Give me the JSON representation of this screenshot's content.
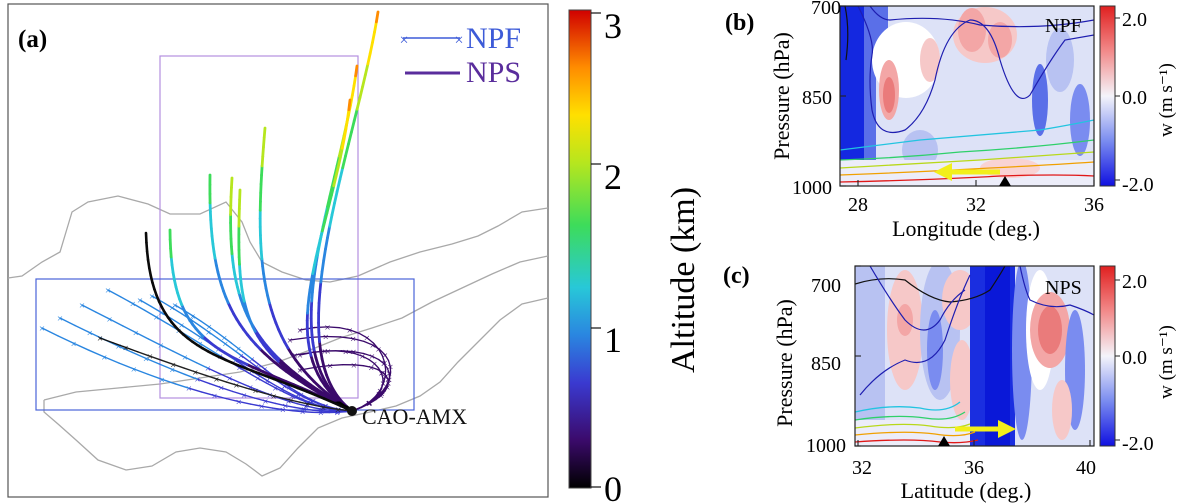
{
  "panel_a": {
    "label": "(a)",
    "legend": [
      {
        "name": "NPF",
        "color": "#3d5bd8",
        "marker": "x"
      },
      {
        "name": "NPS",
        "color": "#5a2d9c",
        "marker": "none"
      }
    ],
    "site_label": "CAO-AMX",
    "colorbar": {
      "label": "Altitude (km)",
      "ticks": [
        "3",
        "2",
        "1",
        "0"
      ],
      "range_km": [
        0,
        3.1
      ],
      "colormap": [
        "#000000",
        "#3b0a6b",
        "#3a3ad0",
        "#2a86e0",
        "#28c8d8",
        "#3ddc5a",
        "#b6e61e",
        "#ffe000",
        "#ff8c00",
        "#ff2000",
        "#d00000"
      ]
    }
  },
  "panel_b": {
    "label": "(b)",
    "tag": "NPF",
    "xlabel": "Longitude (deg.)",
    "ylabel": "Pressure (hPa)",
    "xticks": [
      "28",
      "32",
      "36"
    ],
    "yticks": [
      "700",
      "850",
      "1000"
    ],
    "cbar_label": "w (m s⁻¹)",
    "cbar_ticks": [
      "2.0",
      "0.0",
      "-2.0"
    ]
  },
  "panel_c": {
    "label": "(c)",
    "tag": "NPS",
    "xlabel": "Latitude (deg.)",
    "ylabel": "Pressure (hPa)",
    "xticks": [
      "32",
      "36",
      "40"
    ],
    "yticks": [
      "700",
      "850",
      "1000"
    ],
    "cbar_label": "w (m s⁻¹)",
    "cbar_ticks": [
      "2.0",
      "0.0",
      "-2.0"
    ]
  },
  "chart_data": [
    {
      "type": "line",
      "panel": "a",
      "series": [
        {
          "name": "NPF",
          "count": 8
        },
        {
          "name": "NPS",
          "count": 9
        }
      ],
      "colorbar_range": [
        0,
        3.1
      ]
    },
    {
      "type": "heatmap",
      "panel": "b",
      "xlabel": "Longitude (deg.)",
      "ylabel": "Pressure (hPa)",
      "xlim": [
        27.5,
        36
      ],
      "ylim": [
        1000,
        700
      ],
      "zlim": [
        -2.0,
        2.0
      ],
      "site_marker_x": 33
    },
    {
      "type": "heatmap",
      "panel": "c",
      "xlabel": "Latitude (deg.)",
      "ylabel": "Pressure (hPa)",
      "xlim": [
        31.5,
        41
      ],
      "ylim": [
        1000,
        700
      ],
      "zlim": [
        -2.0,
        2.0
      ],
      "site_marker_x": 35
    }
  ]
}
